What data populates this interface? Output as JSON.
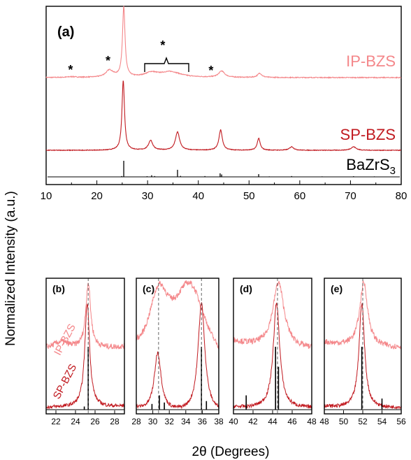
{
  "colors": {
    "ip": "#f4878a",
    "sp": "#c11a20",
    "ref": "#000000"
  },
  "chart_data": [
    {
      "panel_label": "(a)",
      "type": "line",
      "xlim": [
        10,
        80
      ],
      "x_ticks": [
        "10",
        "20",
        "30",
        "40",
        "50",
        "60",
        "70",
        "80"
      ],
      "series_labels": {
        "ip": "IP-BZS",
        "sp": "SP-BZS",
        "ref_main": "BaZrS",
        "ref_sub": "3"
      },
      "grid": false,
      "series": [
        {
          "name": "IP-BZS",
          "color": "#f4878a",
          "baseline": 0.12,
          "peaks": [
            [
              15,
              0.01,
              1.0
            ],
            [
              22.5,
              0.1,
              0.9
            ],
            [
              25.3,
              1.0,
              0.3
            ],
            [
              30.7,
              0.06,
              1.5
            ],
            [
              34.5,
              0.08,
              2.5
            ],
            [
              44.6,
              0.09,
              0.7
            ],
            [
              52.1,
              0.06,
              0.5
            ]
          ]
        },
        {
          "name": "SP-BZS",
          "color": "#c11a20",
          "baseline": 0.05,
          "peaks": [
            [
              25.2,
              1.0,
              0.3
            ],
            [
              30.6,
              0.14,
              0.5
            ],
            [
              35.9,
              0.26,
              0.5
            ],
            [
              44.4,
              0.29,
              0.4
            ],
            [
              51.9,
              0.17,
              0.35
            ],
            [
              58.4,
              0.05,
              0.5
            ],
            [
              70.6,
              0.05,
              0.6
            ]
          ]
        },
        {
          "name": "BaZrS3",
          "color": "#000000",
          "type": "stick",
          "sticks": [
            [
              24.9,
              0.05
            ],
            [
              25.3,
              1.0
            ],
            [
              29.9,
              0.04
            ],
            [
              30.8,
              0.1
            ],
            [
              31.4,
              0.05
            ],
            [
              35.9,
              0.44
            ],
            [
              36.5,
              0.06
            ],
            [
              41.3,
              0.05
            ],
            [
              44.3,
              0.22
            ],
            [
              44.6,
              0.15
            ],
            [
              51.9,
              0.17
            ],
            [
              54.0,
              0.03
            ],
            [
              58.4,
              0.05
            ],
            [
              64.4,
              0.03
            ],
            [
              70.6,
              0.04
            ],
            [
              74.7,
              0.03
            ]
          ]
        }
      ],
      "annotations": [
        {
          "text": "*",
          "x": 14.8
        },
        {
          "text": "*",
          "x": 22.2
        },
        {
          "text": "*",
          "x": 33.0
        },
        {
          "text": "*",
          "x": 42.5
        }
      ]
    },
    {
      "panel_label": "(b)",
      "type": "line",
      "xlim": [
        21,
        29
      ],
      "x_ticks": [
        "22",
        "24",
        "26",
        "28"
      ],
      "dashed_x": 25.3,
      "ip_label": "IP-BZS",
      "sp_label": "SP-BZS"
    },
    {
      "panel_label": "(c)",
      "type": "line",
      "xlim": [
        28,
        38
      ],
      "x_ticks": [
        "28",
        "30",
        "32",
        "34",
        "36",
        "38"
      ],
      "dashed_x": [
        30.7,
        35.9
      ]
    },
    {
      "panel_label": "(d)",
      "type": "line",
      "xlim": [
        40,
        48
      ],
      "x_ticks": [
        "40",
        "42",
        "44",
        "46",
        "48"
      ],
      "dashed_x": 44.5
    },
    {
      "panel_label": "(e)",
      "type": "line",
      "xlim": [
        48,
        56
      ],
      "x_ticks": [
        "48",
        "50",
        "52",
        "54",
        "56"
      ],
      "dashed_x": 52.0
    }
  ],
  "axes": {
    "ylabel": "Normalized Intensity (a.u.)",
    "xlabel_bottom": "2θ (Degrees)"
  }
}
